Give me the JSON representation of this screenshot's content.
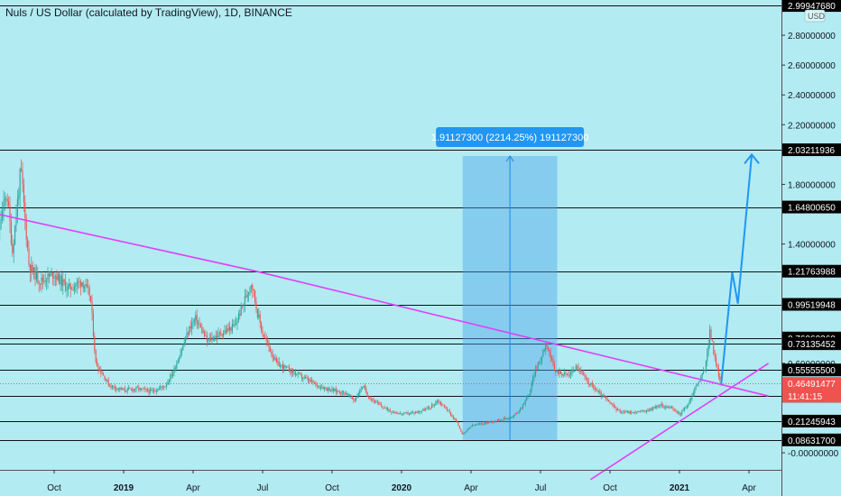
{
  "header": {
    "title": "Nuls / US Dollar (calculated by TradingView), 1D, BINANCE"
  },
  "chart_data": {
    "type": "candlestick",
    "currency_label": "USD",
    "ylim": [
      -0.06,
      3.0
    ],
    "y_axis_ticks": [
      {
        "value": 2.8,
        "label": "2.80000000"
      },
      {
        "value": 2.6,
        "label": "2.60000000"
      },
      {
        "value": 2.4,
        "label": "2.40000000"
      },
      {
        "value": 2.2,
        "label": "2.20000000"
      },
      {
        "value": 1.8,
        "label": "1.80000000"
      },
      {
        "value": 1.4,
        "label": "1.40000000"
      },
      {
        "value": 0.6,
        "label": "0.60000000"
      },
      {
        "value": 0.0,
        "label": "-0.00000000"
      }
    ],
    "x_axis_ticks": [
      {
        "label": "Oct",
        "t": 2018.75,
        "bold": false
      },
      {
        "label": "2019",
        "t": 2019.0,
        "bold": true
      },
      {
        "label": "Apr",
        "t": 2019.25,
        "bold": false
      },
      {
        "label": "Jul",
        "t": 2019.5,
        "bold": false
      },
      {
        "label": "Oct",
        "t": 2019.75,
        "bold": false
      },
      {
        "label": "2020",
        "t": 2020.0,
        "bold": true
      },
      {
        "label": "Apr",
        "t": 2020.25,
        "bold": false
      },
      {
        "label": "Jul",
        "t": 2020.5,
        "bold": false
      },
      {
        "label": "Oct",
        "t": 2020.75,
        "bold": false
      },
      {
        "label": "2021",
        "t": 2021.0,
        "bold": true
      },
      {
        "label": "Apr",
        "t": 2021.25,
        "bold": false
      }
    ],
    "horizontal_levels": [
      {
        "value": 2.9994768,
        "label": "2.99947680"
      },
      {
        "value": 2.03211936,
        "label": "2.03211936"
      },
      {
        "value": 1.6480065,
        "label": "1.64800650"
      },
      {
        "value": 1.21763988,
        "label": "1.21763988"
      },
      {
        "value": 0.99519948,
        "label": "0.99519948"
      },
      {
        "value": 0.7696936,
        "label": "0.76969360"
      },
      {
        "value": 0.73135452,
        "label": "0.73135452"
      },
      {
        "value": 0.555555,
        "label": "0.55555500"
      },
      {
        "value": 0.3798,
        "label": "0.37980000"
      },
      {
        "value": 0.21245943,
        "label": "0.21245943"
      },
      {
        "value": 0.086317,
        "label": "0.08631700"
      }
    ],
    "current_price": {
      "value": 0.46491477,
      "label": "0.46491477",
      "countdown": "11:41:15",
      "color": "#ef5350"
    },
    "price_path": [
      [
        2018.5,
        2.9
      ],
      [
        2018.52,
        2.6
      ],
      [
        2018.55,
        1.5
      ],
      [
        2018.58,
        1.75
      ],
      [
        2018.6,
        1.35
      ],
      [
        2018.63,
        1.9
      ],
      [
        2018.66,
        1.25
      ],
      [
        2018.7,
        1.15
      ],
      [
        2018.75,
        1.2
      ],
      [
        2018.8,
        1.1
      ],
      [
        2018.85,
        1.15
      ],
      [
        2018.88,
        1.05
      ],
      [
        2018.9,
        0.6
      ],
      [
        2018.95,
        0.45
      ],
      [
        2019.0,
        0.42
      ],
      [
        2019.05,
        0.43
      ],
      [
        2019.1,
        0.41
      ],
      [
        2019.15,
        0.45
      ],
      [
        2019.18,
        0.55
      ],
      [
        2019.21,
        0.7
      ],
      [
        2019.24,
        0.85
      ],
      [
        2019.26,
        0.9
      ],
      [
        2019.3,
        0.75
      ],
      [
        2019.35,
        0.8
      ],
      [
        2019.4,
        0.85
      ],
      [
        2019.43,
        1.0
      ],
      [
        2019.46,
        1.15
      ],
      [
        2019.48,
        0.95
      ],
      [
        2019.5,
        0.8
      ],
      [
        2019.55,
        0.6
      ],
      [
        2019.6,
        0.55
      ],
      [
        2019.65,
        0.5
      ],
      [
        2019.7,
        0.45
      ],
      [
        2019.75,
        0.42
      ],
      [
        2019.8,
        0.4
      ],
      [
        2019.83,
        0.35
      ],
      [
        2019.86,
        0.45
      ],
      [
        2019.88,
        0.38
      ],
      [
        2019.92,
        0.32
      ],
      [
        2019.96,
        0.28
      ],
      [
        2020.0,
        0.26
      ],
      [
        2020.05,
        0.27
      ],
      [
        2020.1,
        0.3
      ],
      [
        2020.13,
        0.35
      ],
      [
        2020.16,
        0.3
      ],
      [
        2020.2,
        0.2
      ],
      [
        2020.22,
        0.12
      ],
      [
        2020.25,
        0.18
      ],
      [
        2020.3,
        0.2
      ],
      [
        2020.35,
        0.22
      ],
      [
        2020.4,
        0.24
      ],
      [
        2020.43,
        0.3
      ],
      [
        2020.46,
        0.4
      ],
      [
        2020.48,
        0.55
      ],
      [
        2020.5,
        0.62
      ],
      [
        2020.52,
        0.75
      ],
      [
        2020.55,
        0.55
      ],
      [
        2020.6,
        0.52
      ],
      [
        2020.63,
        0.58
      ],
      [
        2020.66,
        0.5
      ],
      [
        2020.7,
        0.42
      ],
      [
        2020.74,
        0.35
      ],
      [
        2020.78,
        0.28
      ],
      [
        2020.83,
        0.27
      ],
      [
        2020.88,
        0.28
      ],
      [
        2020.93,
        0.32
      ],
      [
        2020.97,
        0.3
      ],
      [
        2021.0,
        0.26
      ],
      [
        2021.03,
        0.32
      ],
      [
        2021.06,
        0.45
      ],
      [
        2021.09,
        0.55
      ],
      [
        2021.11,
        0.82
      ],
      [
        2021.13,
        0.6
      ],
      [
        2021.15,
        0.46
      ]
    ],
    "trendlines": [
      {
        "name": "descending",
        "color": "#e040fb",
        "points": [
          [
            2018.5,
            1.62
          ],
          [
            2019.47,
            1.22
          ],
          [
            2021.32,
            0.38
          ]
        ]
      },
      {
        "name": "ascending",
        "color": "#e040fb",
        "points": [
          [
            2020.68,
            -0.18
          ],
          [
            2021.32,
            0.6
          ]
        ]
      }
    ],
    "projection": {
      "color": "#2196f3",
      "points": [
        [
          2021.15,
          0.46
        ],
        [
          2021.19,
          1.21
        ],
        [
          2021.21,
          1.0
        ],
        [
          2021.26,
          2.0
        ]
      ]
    },
    "measure": {
      "t_start": 2020.22,
      "t_end": 2020.56,
      "top": 1.99,
      "bottom": 0.086,
      "label": "1.91127300 (2214.25%) 191127300"
    }
  }
}
